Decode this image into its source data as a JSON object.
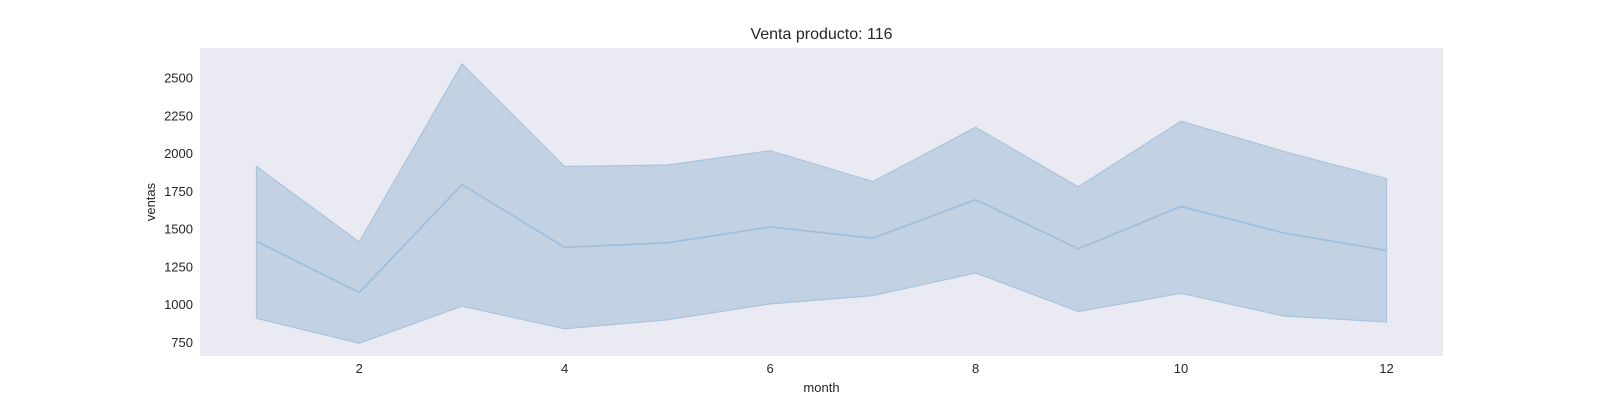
{
  "chart_data": {
    "type": "line",
    "title": "Venta producto: 116",
    "xlabel": "month",
    "ylabel": "ventas",
    "xlim": [
      0.45,
      12.55
    ],
    "ylim": [
      660,
      2700
    ],
    "xticks": [
      2,
      4,
      6,
      8,
      10,
      12
    ],
    "yticks": [
      750,
      1000,
      1250,
      1500,
      1750,
      2000,
      2250,
      2500
    ],
    "grid": false,
    "series": [
      {
        "name": "ventas",
        "x": [
          1,
          2,
          3,
          4,
          5,
          6,
          7,
          8,
          9,
          10,
          11,
          12
        ],
        "mean": [
          1420,
          1080,
          1795,
          1380,
          1410,
          1515,
          1440,
          1695,
          1370,
          1650,
          1475,
          1360
        ],
        "upper": [
          1915,
          1415,
          2595,
          1915,
          1925,
          2020,
          1815,
          2175,
          1780,
          2215,
          2015,
          1835
        ],
        "lower": [
          910,
          745,
          990,
          840,
          900,
          1005,
          1060,
          1210,
          955,
          1075,
          925,
          885
        ]
      }
    ],
    "colors": {
      "plot_bg": "#eaeaf2",
      "band": "#c2d2e3",
      "band_edge": "#a9c4de",
      "line": "#9fc0de"
    }
  }
}
